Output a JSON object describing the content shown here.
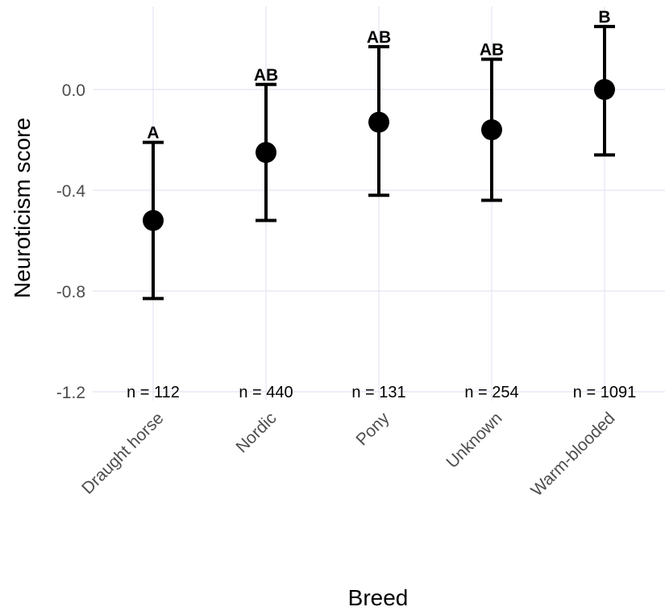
{
  "chart_data": {
    "type": "scatter",
    "xlabel": "Breed",
    "ylabel": "Neuroticism score",
    "categories": [
      "Draught horse",
      "Nordic",
      "Pony",
      "Unknown",
      "Warm-blooded"
    ],
    "means": [
      -0.52,
      -0.25,
      -0.13,
      -0.16,
      0.0
    ],
    "lower": [
      -0.83,
      -0.52,
      -0.42,
      -0.44,
      -0.26
    ],
    "upper": [
      -0.21,
      0.02,
      0.17,
      0.12,
      0.25
    ],
    "group_letters": [
      "A",
      "AB",
      "AB",
      "AB",
      "B"
    ],
    "n_labels": [
      "n = 112",
      "n = 440",
      "n = 131",
      "n = 254",
      "n = 1091"
    ],
    "n_label_y": -1.2,
    "ylim": [
      -1.25,
      0.32
    ],
    "yticks": [
      -1.2,
      -0.8,
      -0.4,
      0.0
    ],
    "ytick_labels": [
      "-1.2",
      "-0.8",
      "-0.4",
      "0.0"
    ],
    "grid": true,
    "legend": "none",
    "colors": {
      "marks": "#000000",
      "grid": "#e4e4f2",
      "tick_text": "#4d4d4d"
    }
  }
}
